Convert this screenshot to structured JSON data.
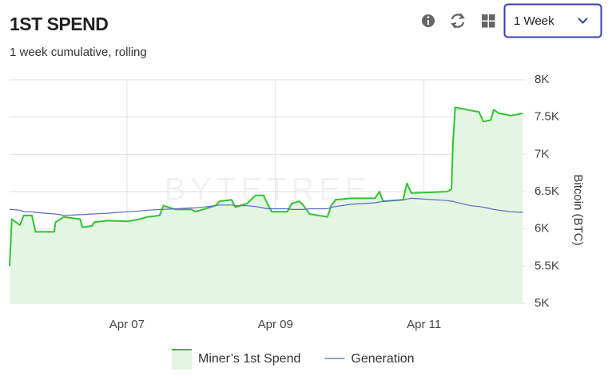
{
  "header": {
    "title": "1ST SPEND",
    "subtitle": "1 week cumulative, rolling",
    "range_select": "1 Week"
  },
  "chart_data": {
    "type": "line",
    "watermark": "BYTETREE",
    "y_axis_label": "Bitcoin (BTC)",
    "x": [
      5.42,
      5.45,
      5.56,
      5.61,
      5.72,
      5.77,
      6.02,
      6.04,
      6.15,
      6.37,
      6.4,
      6.53,
      6.56,
      6.74,
      7.01,
      7.17,
      7.28,
      7.44,
      7.49,
      7.66,
      7.87,
      7.92,
      8.19,
      8.25,
      8.41,
      8.46,
      8.62,
      8.73,
      8.84,
      8.89,
      8.95,
      9.16,
      9.22,
      9.32,
      9.38,
      9.46,
      9.7,
      9.75,
      9.81,
      10.02,
      10.34,
      10.4,
      10.45,
      10.72,
      10.77,
      10.83,
      11.31,
      11.37,
      11.39,
      11.42,
      11.63,
      11.74,
      11.8,
      11.9,
      11.94,
      12.01,
      12.17,
      12.33
    ],
    "series": [
      {
        "name": "Miner’s 1st Spend",
        "color": "#2fc52f",
        "fill": "#e3f6e3",
        "area": true,
        "values": [
          5500,
          6130,
          6050,
          6180,
          6180,
          5960,
          5960,
          6090,
          6160,
          6130,
          6020,
          6040,
          6090,
          6110,
          6100,
          6130,
          6160,
          6180,
          6310,
          6260,
          6260,
          6230,
          6310,
          6370,
          6390,
          6290,
          6340,
          6450,
          6450,
          6340,
          6230,
          6230,
          6340,
          6370,
          6310,
          6200,
          6160,
          6310,
          6390,
          6410,
          6410,
          6500,
          6370,
          6390,
          6610,
          6480,
          6500,
          6530,
          7140,
          7630,
          7590,
          7570,
          7440,
          7460,
          7600,
          7550,
          7520,
          7550
        ]
      },
      {
        "name": "Generation",
        "color": "#5c68c6",
        "area": false,
        "values": [
          6260,
          6260,
          6250,
          6230,
          6230,
          6220,
          6200,
          6200,
          6180,
          6190,
          6190,
          6200,
          6200,
          6210,
          6230,
          6240,
          6250,
          6260,
          6260,
          6270,
          6280,
          6280,
          6310,
          6320,
          6320,
          6310,
          6310,
          6300,
          6280,
          6270,
          6270,
          6270,
          6260,
          6260,
          6260,
          6270,
          6270,
          6290,
          6300,
          6330,
          6350,
          6360,
          6370,
          6390,
          6400,
          6410,
          6380,
          6370,
          6370,
          6360,
          6310,
          6300,
          6290,
          6270,
          6260,
          6250,
          6230,
          6220
        ]
      }
    ],
    "xlim": [
      5.42,
      12.37
    ],
    "xticks": [
      {
        "value": 7,
        "label": "Apr 07"
      },
      {
        "value": 9,
        "label": "Apr 09"
      },
      {
        "value": 11,
        "label": "Apr 11"
      }
    ],
    "ylim": [
      5000,
      8000
    ],
    "yticks": [
      {
        "value": 5000,
        "label": "5K"
      },
      {
        "value": 5500,
        "label": "5.5K"
      },
      {
        "value": 6000,
        "label": "6K"
      },
      {
        "value": 6500,
        "label": "6.5K"
      },
      {
        "value": 7000,
        "label": "7K"
      },
      {
        "value": 7500,
        "label": "7.5K"
      },
      {
        "value": 8000,
        "label": "8K"
      }
    ],
    "grid": true,
    "legend": "bottom"
  }
}
